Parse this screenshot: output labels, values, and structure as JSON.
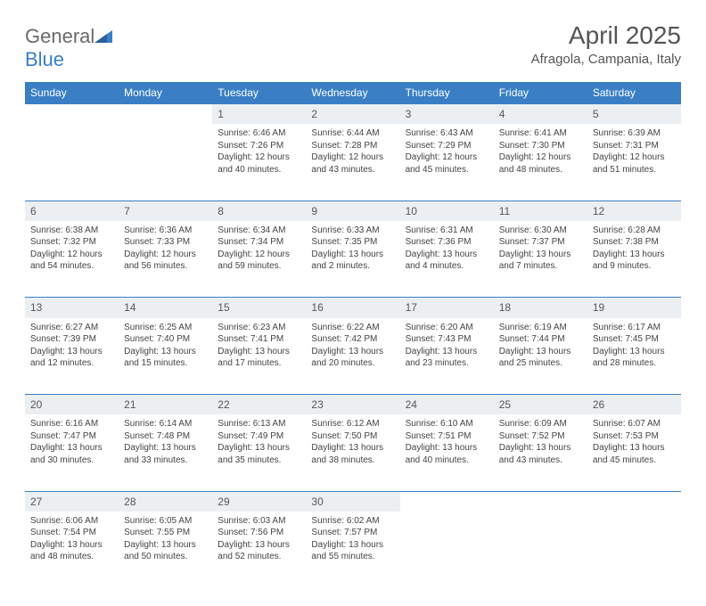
{
  "logo": {
    "text1": "General",
    "text2": "Blue"
  },
  "title": "April 2025",
  "subtitle": "Afragola, Campania, Italy",
  "colors": {
    "header_bg": "#3a7fc4",
    "header_text": "#ffffff",
    "daynum_bg": "#eceff2",
    "border": "#3a7fc4",
    "body_text": "#444",
    "title_text": "#555"
  },
  "weekdays": [
    "Sunday",
    "Monday",
    "Tuesday",
    "Wednesday",
    "Thursday",
    "Friday",
    "Saturday"
  ],
  "weeks": [
    [
      null,
      null,
      {
        "n": "1",
        "sr": "6:46 AM",
        "ss": "7:26 PM",
        "dl": "12 hours and 40 minutes."
      },
      {
        "n": "2",
        "sr": "6:44 AM",
        "ss": "7:28 PM",
        "dl": "12 hours and 43 minutes."
      },
      {
        "n": "3",
        "sr": "6:43 AM",
        "ss": "7:29 PM",
        "dl": "12 hours and 45 minutes."
      },
      {
        "n": "4",
        "sr": "6:41 AM",
        "ss": "7:30 PM",
        "dl": "12 hours and 48 minutes."
      },
      {
        "n": "5",
        "sr": "6:39 AM",
        "ss": "7:31 PM",
        "dl": "12 hours and 51 minutes."
      }
    ],
    [
      {
        "n": "6",
        "sr": "6:38 AM",
        "ss": "7:32 PM",
        "dl": "12 hours and 54 minutes."
      },
      {
        "n": "7",
        "sr": "6:36 AM",
        "ss": "7:33 PM",
        "dl": "12 hours and 56 minutes."
      },
      {
        "n": "8",
        "sr": "6:34 AM",
        "ss": "7:34 PM",
        "dl": "12 hours and 59 minutes."
      },
      {
        "n": "9",
        "sr": "6:33 AM",
        "ss": "7:35 PM",
        "dl": "13 hours and 2 minutes."
      },
      {
        "n": "10",
        "sr": "6:31 AM",
        "ss": "7:36 PM",
        "dl": "13 hours and 4 minutes."
      },
      {
        "n": "11",
        "sr": "6:30 AM",
        "ss": "7:37 PM",
        "dl": "13 hours and 7 minutes."
      },
      {
        "n": "12",
        "sr": "6:28 AM",
        "ss": "7:38 PM",
        "dl": "13 hours and 9 minutes."
      }
    ],
    [
      {
        "n": "13",
        "sr": "6:27 AM",
        "ss": "7:39 PM",
        "dl": "13 hours and 12 minutes."
      },
      {
        "n": "14",
        "sr": "6:25 AM",
        "ss": "7:40 PM",
        "dl": "13 hours and 15 minutes."
      },
      {
        "n": "15",
        "sr": "6:23 AM",
        "ss": "7:41 PM",
        "dl": "13 hours and 17 minutes."
      },
      {
        "n": "16",
        "sr": "6:22 AM",
        "ss": "7:42 PM",
        "dl": "13 hours and 20 minutes."
      },
      {
        "n": "17",
        "sr": "6:20 AM",
        "ss": "7:43 PM",
        "dl": "13 hours and 23 minutes."
      },
      {
        "n": "18",
        "sr": "6:19 AM",
        "ss": "7:44 PM",
        "dl": "13 hours and 25 minutes."
      },
      {
        "n": "19",
        "sr": "6:17 AM",
        "ss": "7:45 PM",
        "dl": "13 hours and 28 minutes."
      }
    ],
    [
      {
        "n": "20",
        "sr": "6:16 AM",
        "ss": "7:47 PM",
        "dl": "13 hours and 30 minutes."
      },
      {
        "n": "21",
        "sr": "6:14 AM",
        "ss": "7:48 PM",
        "dl": "13 hours and 33 minutes."
      },
      {
        "n": "22",
        "sr": "6:13 AM",
        "ss": "7:49 PM",
        "dl": "13 hours and 35 minutes."
      },
      {
        "n": "23",
        "sr": "6:12 AM",
        "ss": "7:50 PM",
        "dl": "13 hours and 38 minutes."
      },
      {
        "n": "24",
        "sr": "6:10 AM",
        "ss": "7:51 PM",
        "dl": "13 hours and 40 minutes."
      },
      {
        "n": "25",
        "sr": "6:09 AM",
        "ss": "7:52 PM",
        "dl": "13 hours and 43 minutes."
      },
      {
        "n": "26",
        "sr": "6:07 AM",
        "ss": "7:53 PM",
        "dl": "13 hours and 45 minutes."
      }
    ],
    [
      {
        "n": "27",
        "sr": "6:06 AM",
        "ss": "7:54 PM",
        "dl": "13 hours and 48 minutes."
      },
      {
        "n": "28",
        "sr": "6:05 AM",
        "ss": "7:55 PM",
        "dl": "13 hours and 50 minutes."
      },
      {
        "n": "29",
        "sr": "6:03 AM",
        "ss": "7:56 PM",
        "dl": "13 hours and 52 minutes."
      },
      {
        "n": "30",
        "sr": "6:02 AM",
        "ss": "7:57 PM",
        "dl": "13 hours and 55 minutes."
      },
      null,
      null,
      null
    ]
  ],
  "labels": {
    "sunrise": "Sunrise:",
    "sunset": "Sunset:",
    "daylight": "Daylight:"
  }
}
